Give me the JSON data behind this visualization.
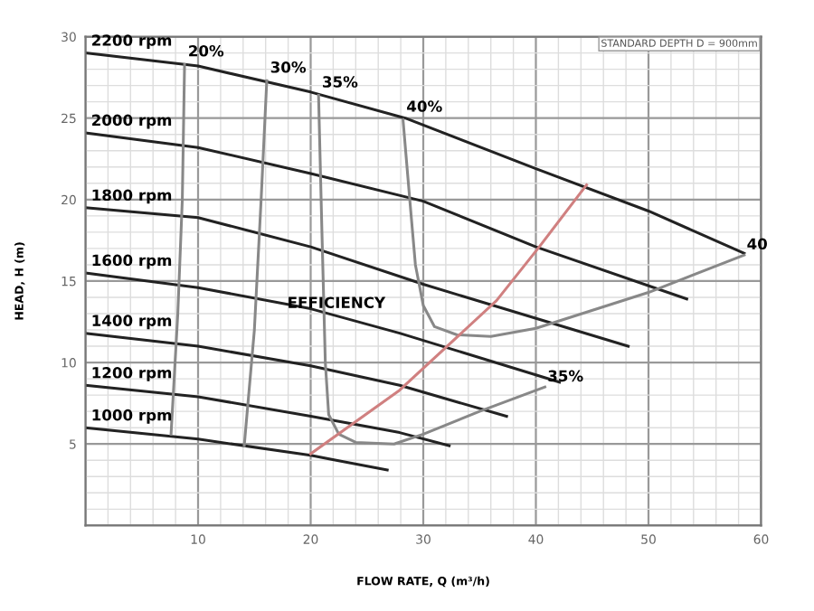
{
  "chart_data": {
    "type": "line",
    "xlabel": "FLOW RATE, Q (m³/h)",
    "ylabel": "HEAD, H (m)",
    "xlim": [
      0,
      60
    ],
    "ylim": [
      0,
      30
    ],
    "xticks": [
      {
        "value": 0,
        "label": null
      },
      10,
      20,
      30,
      40,
      50,
      60
    ],
    "yticks": [
      {
        "value": 0,
        "label": null
      },
      5,
      10,
      15,
      20,
      25,
      30
    ],
    "grid": true,
    "legend": false,
    "marker": "none",
    "line_style": "solid",
    "series": [
      {
        "name": "2200 rpm",
        "color": "#222222",
        "x": [
          0,
          10,
          20,
          28.4,
          40,
          50,
          58.5
        ],
        "values": [
          29.0,
          28.2,
          26.6,
          25.0,
          21.9,
          19.3,
          16.7
        ]
      },
      {
        "name": "2000 rpm",
        "color": "#222222",
        "x": [
          0,
          10,
          20,
          30,
          40,
          53.4
        ],
        "values": [
          24.1,
          23.2,
          21.6,
          19.9,
          17.1,
          13.9
        ]
      },
      {
        "name": "1800 rpm",
        "color": "#222222",
        "x": [
          0,
          10,
          20,
          30,
          48.2
        ],
        "values": [
          19.5,
          18.9,
          17.1,
          14.8,
          11.0
        ]
      },
      {
        "name": "1600 rpm",
        "color": "#222222",
        "x": [
          0,
          10,
          20,
          27.9,
          42.1
        ],
        "values": [
          15.5,
          14.6,
          13.3,
          11.8,
          8.8
        ]
      },
      {
        "name": "1400 rpm",
        "color": "#222222",
        "x": [
          0,
          10,
          20,
          27.9,
          37.4
        ],
        "values": [
          11.8,
          11.0,
          9.8,
          8.6,
          6.7
        ]
      },
      {
        "name": "1200 rpm",
        "color": "#222222",
        "x": [
          0,
          10,
          20,
          27.9,
          32.3
        ],
        "values": [
          8.6,
          7.9,
          6.7,
          5.7,
          4.9
        ]
      },
      {
        "name": "1000 rpm",
        "color": "#222222",
        "x": [
          0,
          10,
          20,
          26.8
        ],
        "values": [
          6.0,
          5.3,
          4.3,
          3.4
        ]
      },
      {
        "name": "20%",
        "color": "#888888",
        "x": [
          8.8,
          8.6,
          8.2,
          7.6
        ],
        "values": [
          28.3,
          20,
          13,
          5.6
        ]
      },
      {
        "name": "30%",
        "color": "#888888",
        "x": [
          16.1,
          15.6,
          15.0,
          14.1
        ],
        "values": [
          27.3,
          20,
          12,
          4.9
        ]
      },
      {
        "name": "35%",
        "color": "#888888",
        "x": [
          20.7,
          21.0,
          21.3,
          21.6,
          22.5,
          24,
          27.4,
          30,
          35,
          40.8
        ],
        "values": [
          26.4,
          18,
          10,
          6.8,
          5.6,
          5.1,
          5.0,
          5.6,
          7.0,
          8.5
        ]
      },
      {
        "name": "40%",
        "color": "#888888",
        "x": [
          28.2,
          28.8,
          29.3,
          30,
          31,
          33,
          36,
          40,
          50,
          58.5
        ],
        "values": [
          24.9,
          20,
          16,
          13.5,
          12.2,
          11.7,
          11.6,
          12.1,
          14.3,
          16.6
        ]
      },
      {
        "color": "#d08080",
        "x": [
          20,
          27.9,
          36.5,
          40.3,
          44.5
        ],
        "values": [
          4.4,
          8.3,
          13.8,
          17.1,
          20.9
        ]
      }
    ],
    "annotations": [
      {
        "text": "35%",
        "x": 40.8,
        "y": 8.5
      },
      {
        "text": "40",
        "x": 58.5,
        "y": 16.6
      },
      {
        "text": "EFFICIENCY",
        "x": 17.7,
        "y": 13.0
      },
      "STANDARD DEPTH D = 900mm"
    ]
  }
}
